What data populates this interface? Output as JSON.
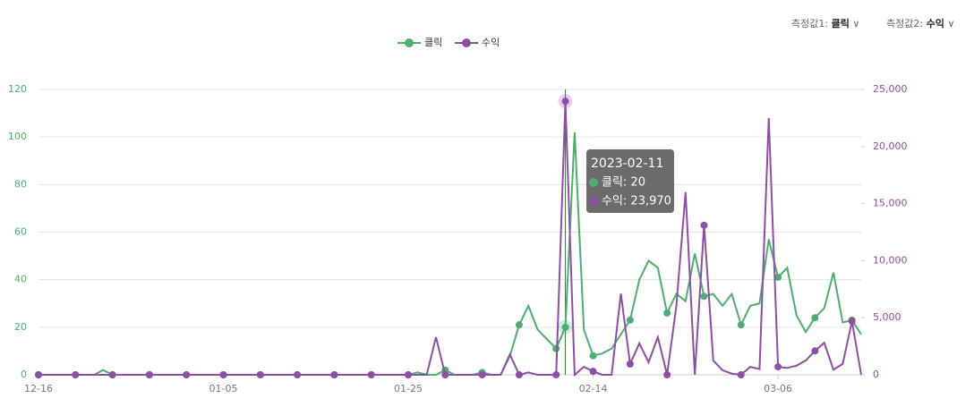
{
  "controls": [
    {
      "label": "측정값1:",
      "value": "클릭"
    },
    {
      "label": "측정값2:",
      "value": "수익"
    }
  ],
  "chart_data": {
    "type": "line",
    "categories": [
      "12-16",
      null,
      null,
      null,
      null,
      null,
      null,
      null,
      null,
      null,
      null,
      null,
      null,
      null,
      null,
      null,
      null,
      null,
      null,
      null,
      "01-05",
      null,
      null,
      null,
      null,
      null,
      null,
      null,
      null,
      null,
      null,
      null,
      null,
      null,
      null,
      null,
      null,
      null,
      null,
      null,
      "01-25",
      null,
      null,
      null,
      null,
      null,
      null,
      null,
      null,
      null,
      null,
      null,
      null,
      null,
      null,
      null,
      null,
      null,
      null,
      null,
      "02-14",
      null,
      null,
      null,
      null,
      null,
      null,
      null,
      null,
      null,
      null,
      null,
      null,
      null,
      null,
      null,
      null,
      null,
      null,
      null,
      "03-06",
      null,
      null,
      null,
      null,
      null,
      null,
      null,
      null,
      null
    ],
    "series": [
      {
        "name": "클릭",
        "color": "#4caf6e",
        "values": [
          0,
          0,
          0,
          0,
          0,
          0,
          0,
          2,
          0,
          0,
          0,
          0,
          0,
          0,
          0,
          0,
          0,
          0,
          0,
          0,
          0,
          0,
          0,
          0,
          0,
          0,
          0,
          0,
          0,
          0,
          0,
          0,
          0,
          0,
          0,
          0,
          0,
          0,
          0,
          0,
          0,
          1,
          0,
          0,
          2,
          0,
          0,
          0,
          1,
          0,
          0,
          8,
          21,
          29,
          19,
          15,
          11,
          20,
          102,
          19,
          8,
          9,
          11,
          17,
          23,
          40,
          48,
          45,
          26,
          34,
          31,
          51,
          33,
          34,
          29,
          34,
          21,
          29,
          30,
          57,
          41,
          45,
          25,
          18,
          24,
          28,
          43,
          22,
          23,
          17
        ]
      },
      {
        "name": "수익",
        "color": "#8e4ea6",
        "axis": "y2",
        "values": [
          0,
          0,
          0,
          0,
          0,
          0,
          0,
          0,
          0,
          0,
          0,
          0,
          0,
          0,
          0,
          0,
          0,
          0,
          0,
          0,
          0,
          0,
          0,
          0,
          0,
          0,
          0,
          0,
          0,
          0,
          0,
          0,
          0,
          0,
          0,
          0,
          0,
          0,
          0,
          0,
          0,
          0,
          0,
          3300,
          0,
          0,
          0,
          0,
          0,
          0,
          0,
          1800,
          0,
          200,
          0,
          0,
          0,
          23970,
          0,
          700,
          300,
          0,
          0,
          7100,
          950,
          2750,
          1100,
          3300,
          0,
          6000,
          16000,
          0,
          13100,
          1250,
          400,
          100,
          0,
          700,
          500,
          22500,
          700,
          600,
          800,
          1250,
          2100,
          2800,
          450,
          950,
          4700,
          0
        ]
      }
    ],
    "ylim": [
      0,
      120
    ],
    "yticks": [
      0,
      20,
      40,
      60,
      80,
      100,
      120
    ],
    "y2lim": [
      0,
      25000
    ],
    "y2ticks": [
      0,
      {
        "value": 5000,
        "label": "5,000"
      },
      {
        "value": 10000,
        "label": "10,000"
      },
      {
        "value": 15000,
        "label": "15,000"
      },
      {
        "value": 20000,
        "label": "20,000"
      },
      {
        "value": 25000,
        "label": "25,000"
      }
    ],
    "grid": true,
    "tooltip": {
      "title": "2023-02-11",
      "rows": [
        "클릭: 20",
        "수익: 23,970"
      ]
    }
  }
}
